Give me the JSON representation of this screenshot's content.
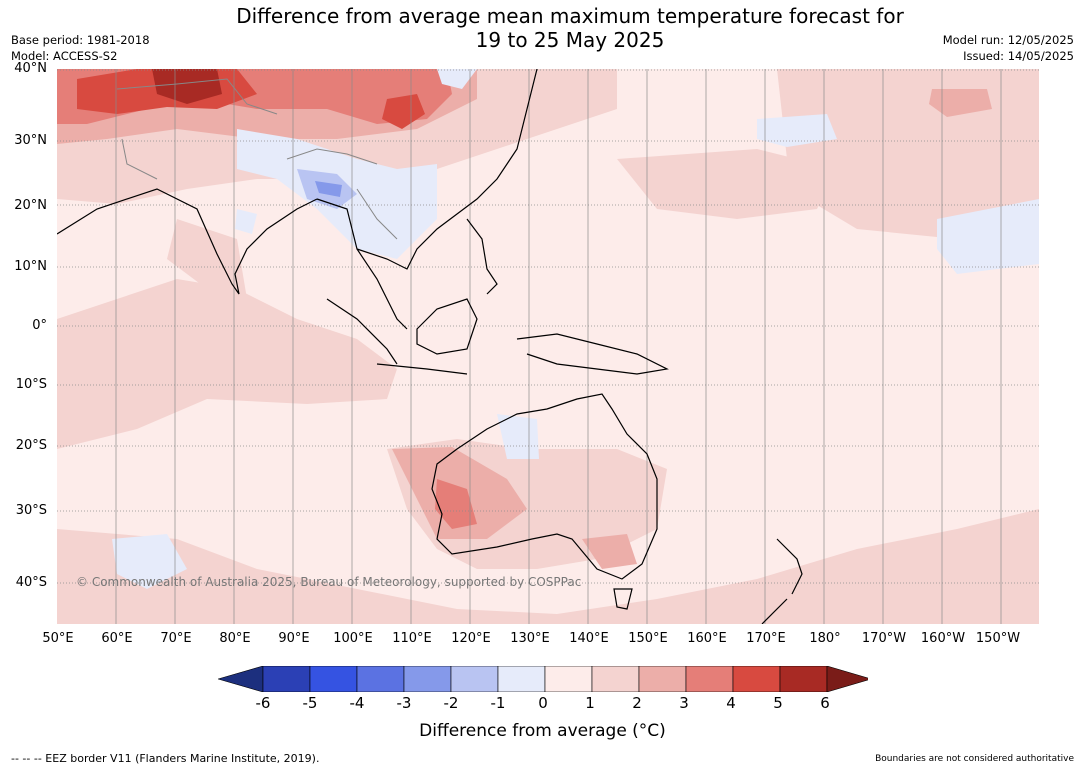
{
  "title_line1": "Difference from average mean maximum temperature forecast for",
  "title_line2": "19 to 25 May 2025",
  "base_period": "Base period: 1981-2018",
  "model": "Model: ACCESS-S2",
  "model_run": "Model run: 12/05/2025",
  "issued": "Issued: 14/05/2025",
  "lat_labels": [
    "40°N",
    "30°N",
    "20°N",
    "10°N",
    "0°",
    "10°S",
    "20°S",
    "30°S",
    "40°S"
  ],
  "lon_labels": [
    "50°E",
    "60°E",
    "70°E",
    "80°E",
    "90°E",
    "100°E",
    "110°E",
    "120°E",
    "130°E",
    "140°E",
    "150°E",
    "160°E",
    "170°E",
    "180°",
    "170°W",
    "160°W",
    "150°W"
  ],
  "copyright": "© Commonwealth of Australia 2025, Bureau of Meteorology, supported by COSPPac",
  "colorbar": {
    "ticks": [
      "-6",
      "-5",
      "-4",
      "-3",
      "-2",
      "-1",
      "0",
      "1",
      "2",
      "3",
      "4",
      "5",
      "6"
    ],
    "colors": [
      "#1c2f7e",
      "#2b40b5",
      "#3553e2",
      "#5b72e2",
      "#8599ea",
      "#b9c4f2",
      "#e6ebfa",
      "#fdecea",
      "#f4d3d0",
      "#ecaea9",
      "#e57e78",
      "#d84a40",
      "#a82a24",
      "#7a1c18"
    ],
    "label": "Difference from average (°C)"
  },
  "footer_left": "--  --  -- EEZ border V11 (Flanders Marine Institute, 2019).",
  "footer_right": "Boundaries are not considered authoritative"
}
